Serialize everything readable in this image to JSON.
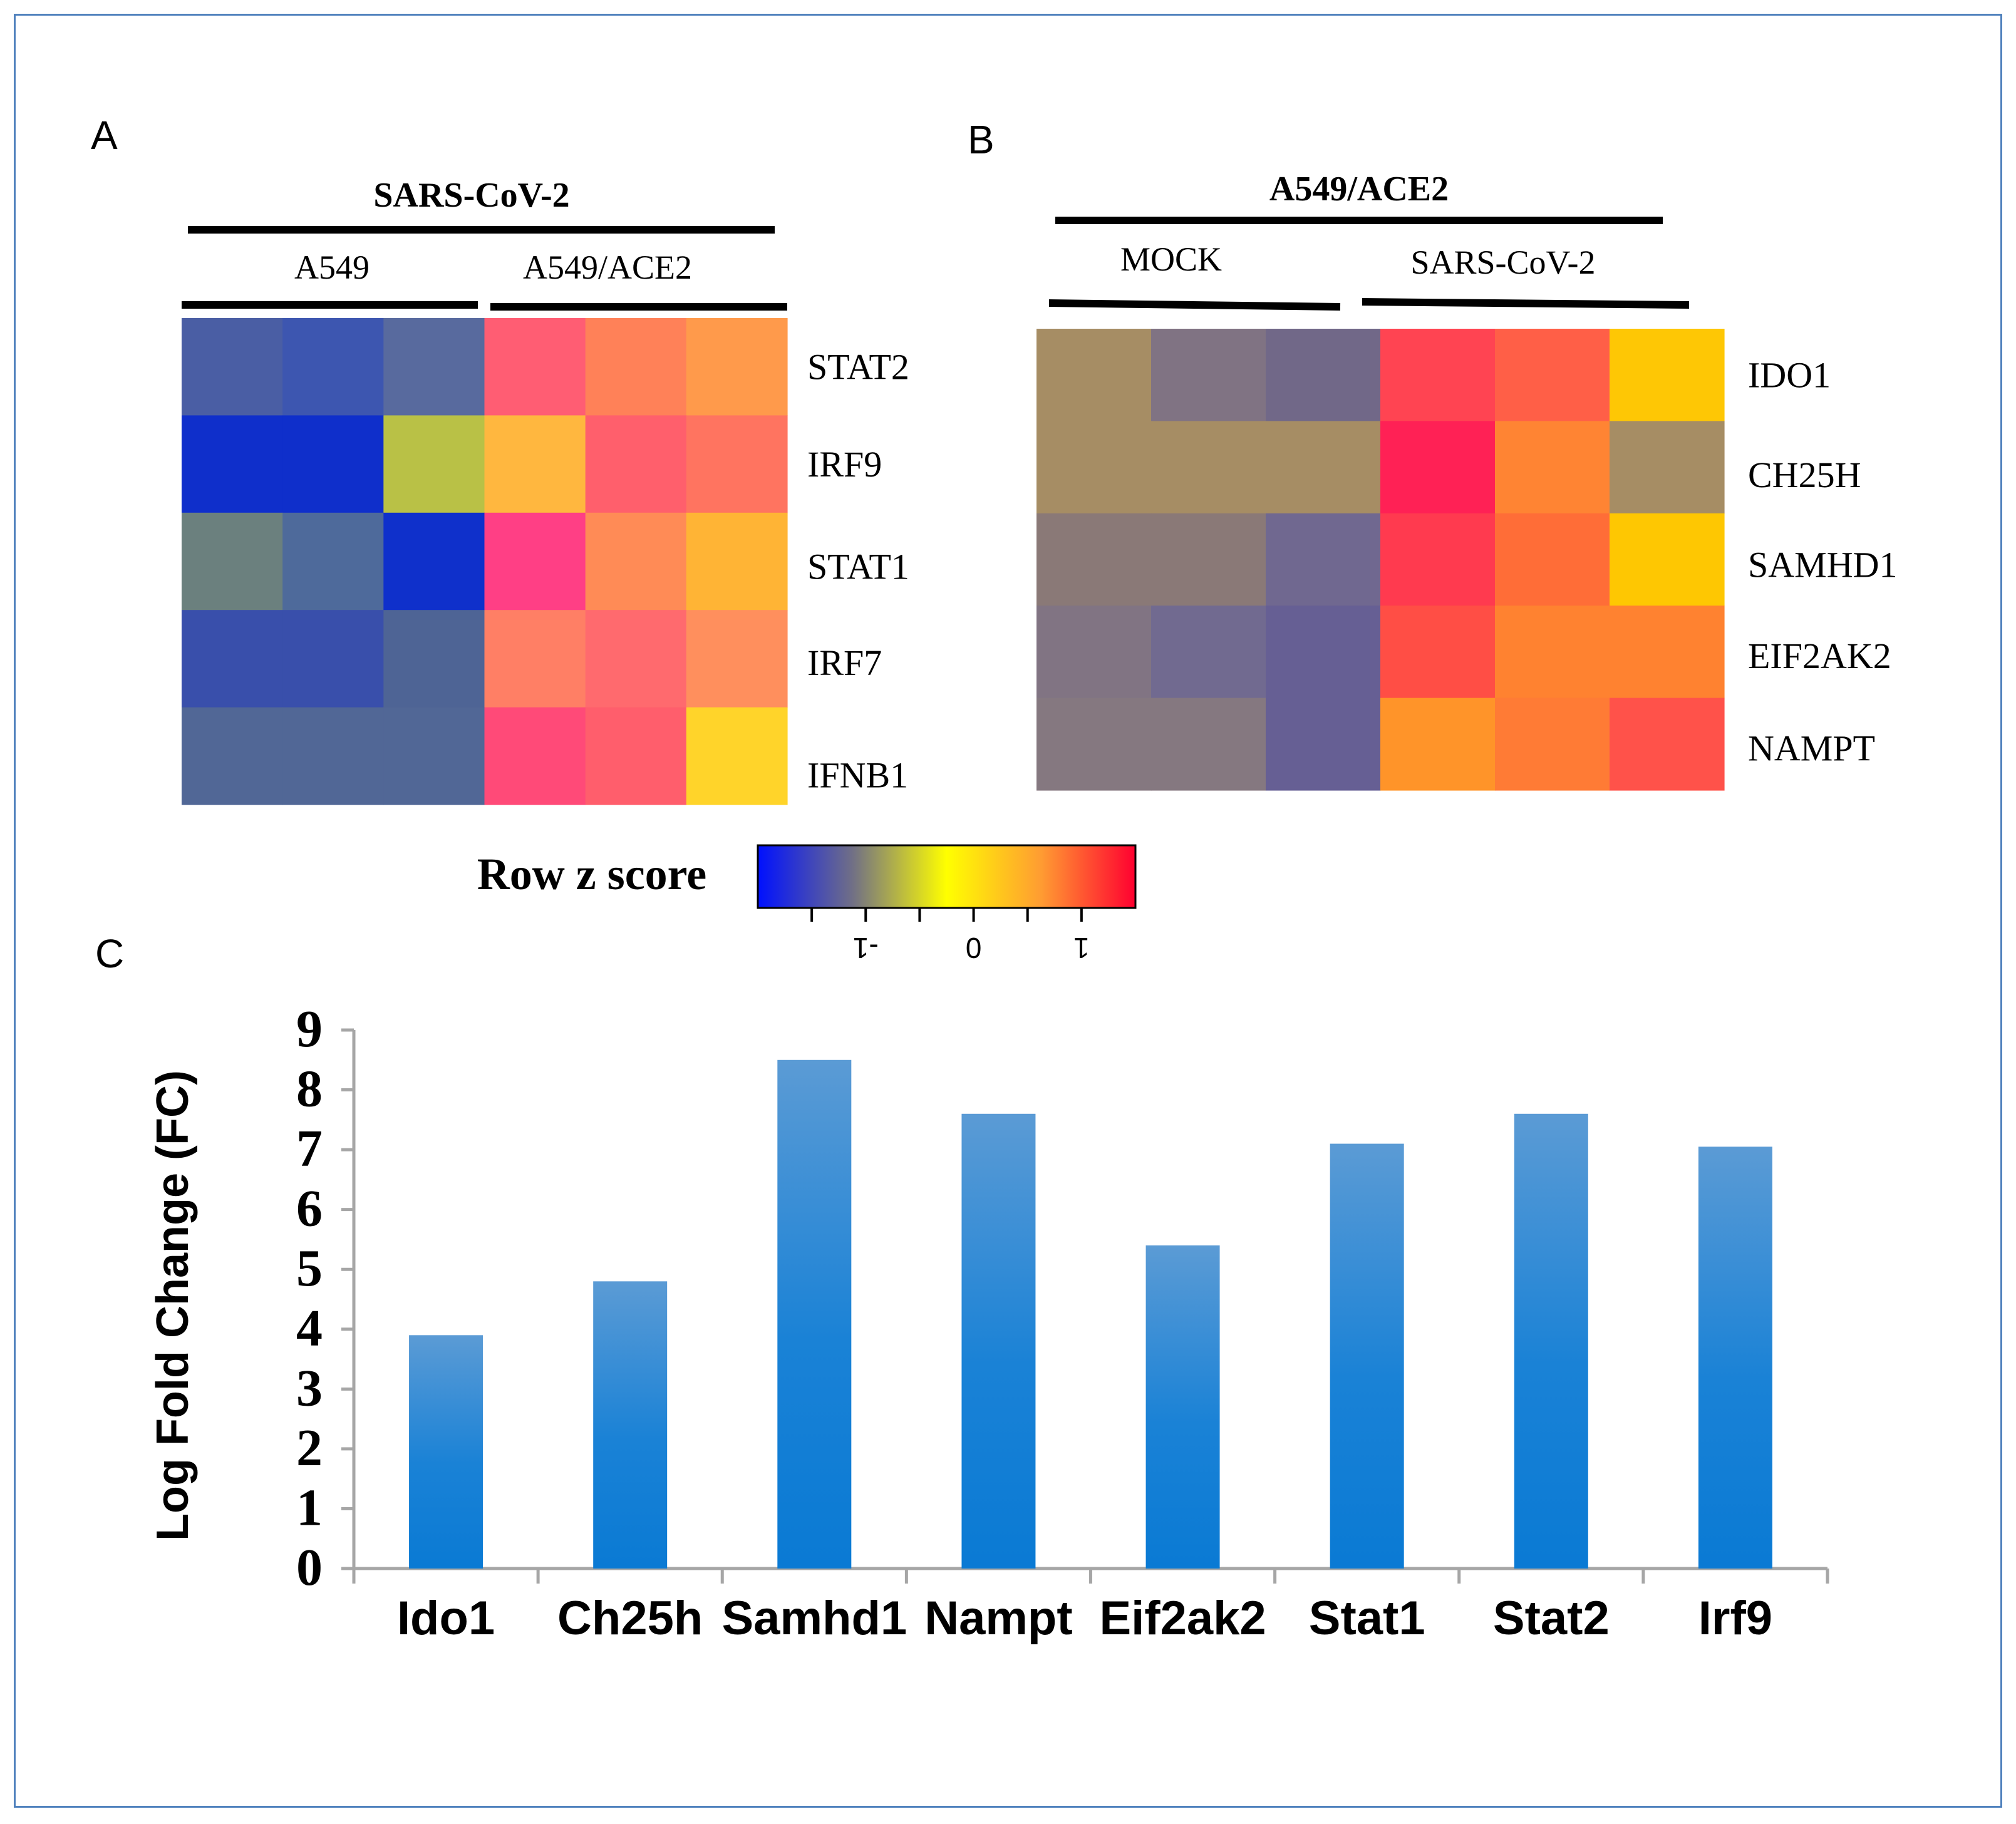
{
  "figure": {
    "panel_labels": [
      "A",
      "B",
      "C"
    ],
    "border_color": "#4f81bd"
  },
  "chart_data": [
    {
      "type": "heatmap",
      "panel": "A",
      "group_label": "SARS-CoV-2",
      "subgroups": [
        "A549",
        "A549/ACE2"
      ],
      "rows": [
        "STAT2",
        "IRF9",
        "STAT1",
        "IRF7",
        "IFNB1"
      ],
      "colors": [
        [
          "#4a5ea4",
          "#3d56b0",
          "#586a9e",
          "#ff5d73",
          "#ff8158",
          "#ff9a4b"
        ],
        [
          "#0f2fcb",
          "#0f2fcb",
          "#b9c146",
          "#ffb73f",
          "#ff5f6c",
          "#ff7460"
        ],
        [
          "#6b807e",
          "#4e6a9b",
          "#0f30cb",
          "#ff3f85",
          "#ff8b56",
          "#ffb435"
        ],
        [
          "#394fab",
          "#394fab",
          "#4e6495",
          "#ff7f65",
          "#ff6a6e",
          "#ff8f5d"
        ],
        [
          "#516796",
          "#516796",
          "#516796",
          "#ff4a78",
          "#ff5e6c",
          "#ffd42a"
        ]
      ]
    },
    {
      "type": "heatmap",
      "panel": "B",
      "group_label": "A549/ACE2",
      "subgroups": [
        "MOCK",
        "SARS-CoV-2"
      ],
      "rows": [
        "IDO1",
        "CH25H",
        "SAMHD1",
        "EIF2AK2",
        "NAMPT"
      ],
      "colors": [
        [
          "#a68d64",
          "#807383",
          "#716888",
          "#ff4452",
          "#ff5f47",
          "#fec705"
        ],
        [
          "#a68d64",
          "#a68d64",
          "#a68d64",
          "#ff2155",
          "#ff8433",
          "#a68d64"
        ],
        [
          "#8a7977",
          "#8a7977",
          "#706890",
          "#ff3a4f",
          "#ff6d37",
          "#fec702"
        ],
        [
          "#817483",
          "#716a90",
          "#665f94",
          "#ff4e45",
          "#ff8230",
          "#ff8230"
        ],
        [
          "#857880",
          "#857880",
          "#665f94",
          "#ff9429",
          "#ff7b35",
          "#ff524a"
        ]
      ]
    },
    {
      "type": "colorbar",
      "title": "Row z score",
      "ticks": [
        "-1",
        "0",
        "1"
      ],
      "tick_values": [
        -1,
        0,
        1
      ],
      "range": [
        -2,
        1.5
      ],
      "stops": [
        "#0010ff",
        "#706f86",
        "#ffff00",
        "#ff9c32",
        "#ff0030"
      ]
    },
    {
      "type": "bar",
      "panel": "C",
      "categories": [
        "Ido1",
        "Ch25h",
        "Samhd1",
        "Nampt",
        "Eif2ak2",
        "Stat1",
        "Stat2",
        "Irf9"
      ],
      "values": [
        3.9,
        4.8,
        8.5,
        7.6,
        5.4,
        7.1,
        7.6,
        7.05
      ],
      "ylabel": "Log Fold Change (FC)",
      "ylim": [
        0,
        9
      ],
      "yticks": [
        "0",
        "1",
        "2",
        "3",
        "4",
        "5",
        "6",
        "7",
        "8",
        "9"
      ],
      "bar_color_top": "#5b9bd5",
      "bar_color_bottom": "#0a7ad4"
    }
  ]
}
